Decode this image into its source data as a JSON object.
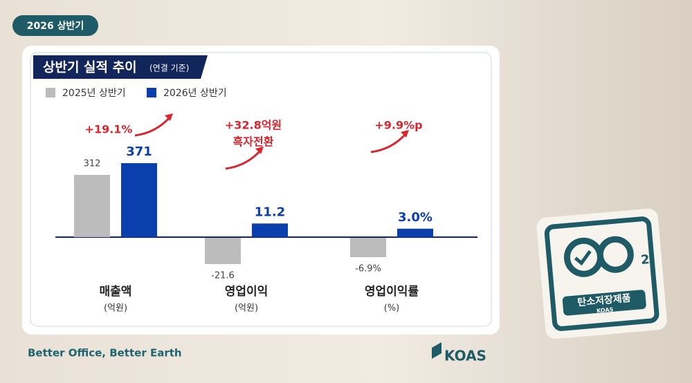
{
  "badge": "2026 상반기",
  "panel": {
    "title": "상반기 실적 추이",
    "subtitle": "(연결 기준)",
    "legend": [
      {
        "name": "2025년 상반기",
        "color": "#bcbcbc"
      },
      {
        "name": "2026년 상반기",
        "color": "#0b3fae"
      }
    ],
    "groups": [
      {
        "label": "매출액",
        "unit": "(억원)",
        "values": [
          312,
          371
        ],
        "change": [
          "+19.1%"
        ]
      },
      {
        "label": "영업이익",
        "unit": "(억원)",
        "values": [
          -21.6,
          11.2
        ],
        "change": [
          "+32.8억원",
          "흑자전환"
        ]
      },
      {
        "label": "영업이익률",
        "unit": "(%)",
        "values": [
          -6.9,
          3.0
        ],
        "value_labels": [
          "-6.9%",
          "3.0%"
        ],
        "change": [
          "+9.9%p"
        ]
      }
    ]
  },
  "slogan": "Better Office, Better Earth",
  "logo": "KOAS",
  "certificate": {
    "subscript": "2",
    "text": "탄소저장제품",
    "brand": "KOAS"
  }
}
